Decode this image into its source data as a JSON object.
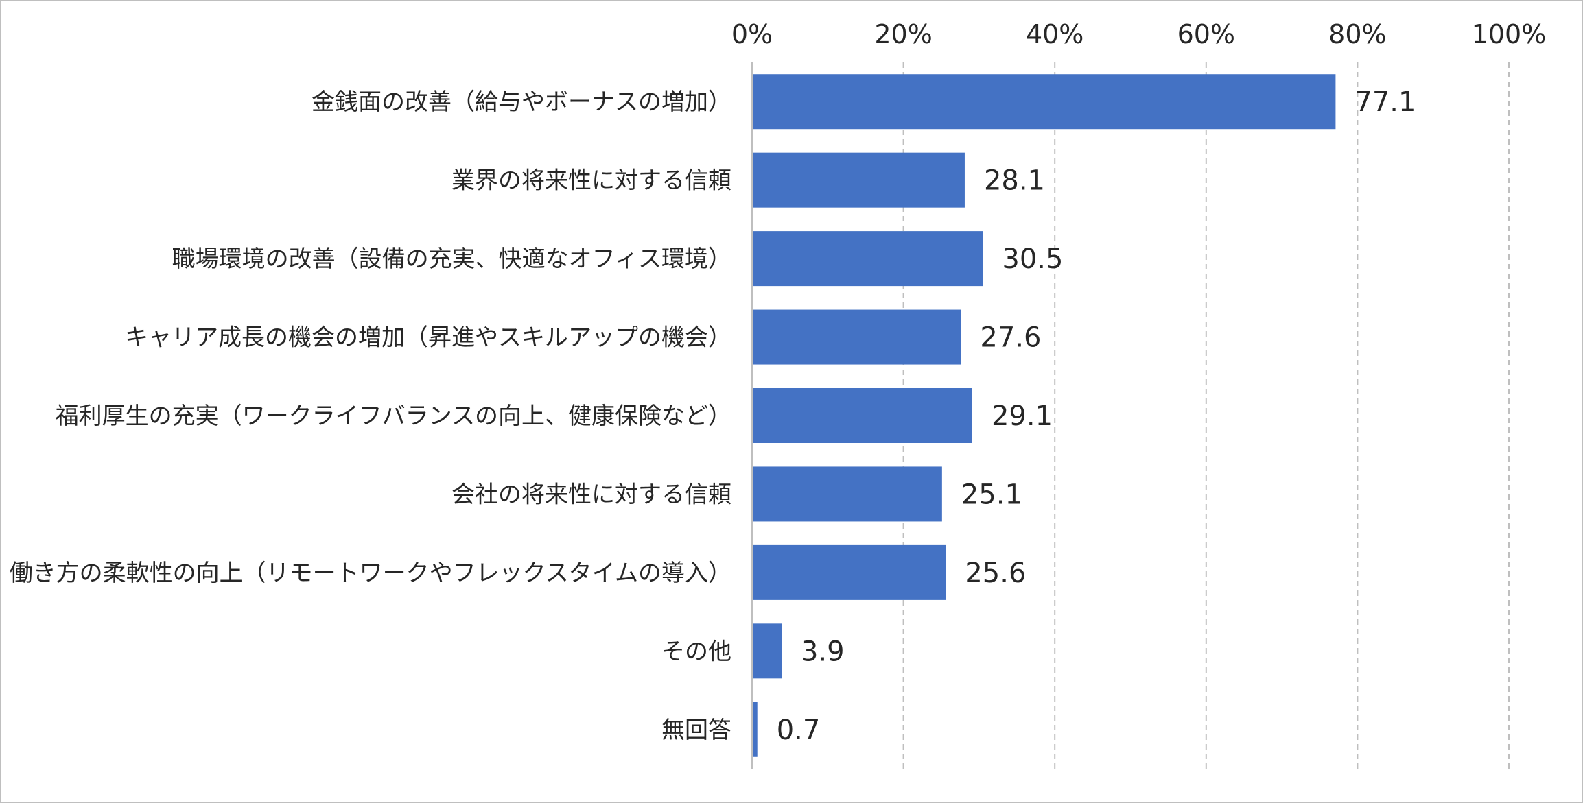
{
  "chart_data": {
    "type": "bar",
    "orientation": "horizontal",
    "title": "",
    "xlabel": "",
    "ylabel": "",
    "xlim": [
      0,
      100
    ],
    "x_ticks": [
      "0%",
      "20%",
      "40%",
      "60%",
      "80%",
      "100%"
    ],
    "grid": "vertical dashed",
    "legend": "none",
    "bar_color": "#4472C4",
    "categories": [
      "金銭面の改善（給与やボーナスの増加）",
      "業界の将来性に対する信頼",
      "職場環境の改善（設備の充実、快適なオフィス環境）",
      "キャリア成長の機会の増加（昇進やスキルアップの機会）",
      "福利厚生の充実（ワークライフバランスの向上、健康保険など）",
      "会社の将来性に対する信頼",
      "働き方の柔軟性の向上（リモートワークやフレックスタイムの導入）",
      "その他",
      "無回答"
    ],
    "values": [
      77.1,
      28.1,
      30.5,
      27.6,
      29.1,
      25.1,
      25.6,
      3.9,
      0.7
    ],
    "data_labels": [
      "77.1",
      "28.1",
      "30.5",
      "27.6",
      "29.1",
      "25.1",
      "25.6",
      "3.9",
      "0.7"
    ]
  }
}
